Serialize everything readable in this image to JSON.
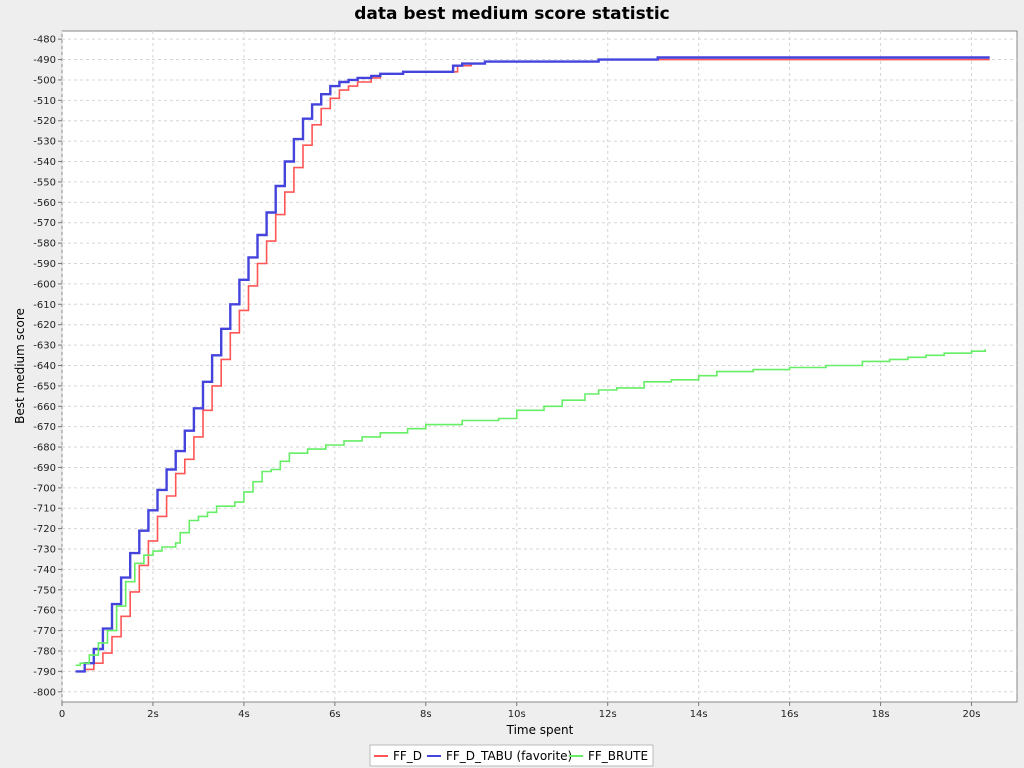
{
  "chart_data": {
    "type": "line",
    "title": "data best medium score statistic",
    "xlabel": "Time spent",
    "ylabel": "Best medium score",
    "xlim": [
      0,
      21
    ],
    "ylim": [
      -805,
      -476
    ],
    "x_ticks": [
      {
        "value": 0,
        "label": "0"
      },
      {
        "value": 2,
        "label": "2s"
      },
      {
        "value": 4,
        "label": "4s"
      },
      {
        "value": 6,
        "label": "6s"
      },
      {
        "value": 8,
        "label": "8s"
      },
      {
        "value": 10,
        "label": "10s"
      },
      {
        "value": 12,
        "label": "12s"
      },
      {
        "value": 14,
        "label": "14s"
      },
      {
        "value": 16,
        "label": "16s"
      },
      {
        "value": 18,
        "label": "18s"
      },
      {
        "value": 20,
        "label": "20s"
      }
    ],
    "y_ticks": [
      -480,
      -490,
      -500,
      -510,
      -520,
      -530,
      -540,
      -550,
      -560,
      -570,
      -580,
      -590,
      -600,
      -610,
      -620,
      -630,
      -640,
      -650,
      -660,
      -670,
      -680,
      -690,
      -700,
      -710,
      -720,
      -730,
      -740,
      -750,
      -760,
      -770,
      -780,
      -790,
      -800
    ],
    "grid": true,
    "legend_position": "bottom",
    "series": [
      {
        "name": "FF_D",
        "color": "#ff5555",
        "points": [
          [
            0.3,
            -790
          ],
          [
            0.5,
            -789
          ],
          [
            0.7,
            -786
          ],
          [
            0.9,
            -781
          ],
          [
            1.1,
            -773
          ],
          [
            1.3,
            -763
          ],
          [
            1.5,
            -751
          ],
          [
            1.7,
            -738
          ],
          [
            1.9,
            -726
          ],
          [
            2.1,
            -714
          ],
          [
            2.3,
            -704
          ],
          [
            2.5,
            -693
          ],
          [
            2.7,
            -686
          ],
          [
            2.9,
            -675
          ],
          [
            3.1,
            -662
          ],
          [
            3.3,
            -650
          ],
          [
            3.5,
            -637
          ],
          [
            3.7,
            -624
          ],
          [
            3.9,
            -613
          ],
          [
            4.1,
            -601
          ],
          [
            4.3,
            -590
          ],
          [
            4.5,
            -579
          ],
          [
            4.7,
            -566
          ],
          [
            4.9,
            -555
          ],
          [
            5.1,
            -543
          ],
          [
            5.3,
            -532
          ],
          [
            5.5,
            -522
          ],
          [
            5.7,
            -514
          ],
          [
            5.9,
            -509
          ],
          [
            6.1,
            -505
          ],
          [
            6.3,
            -503
          ],
          [
            6.5,
            -501
          ],
          [
            6.8,
            -499
          ],
          [
            7.0,
            -497
          ],
          [
            7.5,
            -496
          ],
          [
            8.6,
            -496
          ],
          [
            8.7,
            -493
          ],
          [
            9.0,
            -492
          ],
          [
            9.3,
            -491
          ],
          [
            11.7,
            -491
          ],
          [
            11.8,
            -490
          ],
          [
            20.4,
            -490
          ]
        ]
      },
      {
        "name": "FF_D_TABU (favorite)",
        "color": "#4444dd",
        "points": [
          [
            0.3,
            -790
          ],
          [
            0.5,
            -786
          ],
          [
            0.7,
            -779
          ],
          [
            0.9,
            -769
          ],
          [
            1.1,
            -757
          ],
          [
            1.3,
            -744
          ],
          [
            1.5,
            -732
          ],
          [
            1.7,
            -721
          ],
          [
            1.9,
            -711
          ],
          [
            2.1,
            -701
          ],
          [
            2.3,
            -691
          ],
          [
            2.5,
            -682
          ],
          [
            2.7,
            -672
          ],
          [
            2.9,
            -661
          ],
          [
            3.1,
            -648
          ],
          [
            3.3,
            -635
          ],
          [
            3.5,
            -622
          ],
          [
            3.7,
            -610
          ],
          [
            3.9,
            -598
          ],
          [
            4.1,
            -587
          ],
          [
            4.3,
            -576
          ],
          [
            4.5,
            -565
          ],
          [
            4.7,
            -552
          ],
          [
            4.9,
            -540
          ],
          [
            5.1,
            -529
          ],
          [
            5.3,
            -519
          ],
          [
            5.5,
            -512
          ],
          [
            5.7,
            -507
          ],
          [
            5.9,
            -503
          ],
          [
            6.1,
            -501
          ],
          [
            6.3,
            -500
          ],
          [
            6.5,
            -499
          ],
          [
            6.8,
            -498
          ],
          [
            7.0,
            -497
          ],
          [
            7.5,
            -496
          ],
          [
            8.5,
            -496
          ],
          [
            8.6,
            -493
          ],
          [
            8.8,
            -492
          ],
          [
            9.3,
            -491
          ],
          [
            11.7,
            -491
          ],
          [
            11.8,
            -490
          ],
          [
            13.0,
            -490
          ],
          [
            13.1,
            -489
          ],
          [
            20.4,
            -489
          ]
        ]
      },
      {
        "name": "FF_BRUTE",
        "color": "#66ee66",
        "points": [
          [
            0.3,
            -787
          ],
          [
            0.4,
            -786
          ],
          [
            0.6,
            -782
          ],
          [
            0.8,
            -776
          ],
          [
            1.0,
            -770
          ],
          [
            1.2,
            -758
          ],
          [
            1.4,
            -746
          ],
          [
            1.6,
            -737
          ],
          [
            1.8,
            -733
          ],
          [
            2.0,
            -731
          ],
          [
            2.2,
            -729
          ],
          [
            2.5,
            -727
          ],
          [
            2.6,
            -722
          ],
          [
            2.8,
            -716
          ],
          [
            3.0,
            -714
          ],
          [
            3.2,
            -712
          ],
          [
            3.4,
            -709
          ],
          [
            3.8,
            -707
          ],
          [
            4.0,
            -702
          ],
          [
            4.2,
            -697
          ],
          [
            4.4,
            -692
          ],
          [
            4.6,
            -691
          ],
          [
            4.8,
            -687
          ],
          [
            5.0,
            -683
          ],
          [
            5.4,
            -681
          ],
          [
            5.8,
            -679
          ],
          [
            6.2,
            -677
          ],
          [
            6.6,
            -675
          ],
          [
            7.0,
            -673
          ],
          [
            7.6,
            -671
          ],
          [
            8.0,
            -669
          ],
          [
            8.8,
            -667
          ],
          [
            9.6,
            -666
          ],
          [
            10.0,
            -662
          ],
          [
            10.6,
            -660
          ],
          [
            11.0,
            -657
          ],
          [
            11.5,
            -654
          ],
          [
            11.8,
            -652
          ],
          [
            12.2,
            -651
          ],
          [
            12.8,
            -648
          ],
          [
            13.4,
            -647
          ],
          [
            14.0,
            -645
          ],
          [
            14.4,
            -643
          ],
          [
            15.2,
            -642
          ],
          [
            16.0,
            -641
          ],
          [
            16.8,
            -640
          ],
          [
            17.6,
            -638
          ],
          [
            18.2,
            -637
          ],
          [
            18.6,
            -636
          ],
          [
            19.0,
            -635
          ],
          [
            19.4,
            -634
          ],
          [
            20.0,
            -633
          ],
          [
            20.3,
            -632
          ]
        ]
      }
    ]
  }
}
